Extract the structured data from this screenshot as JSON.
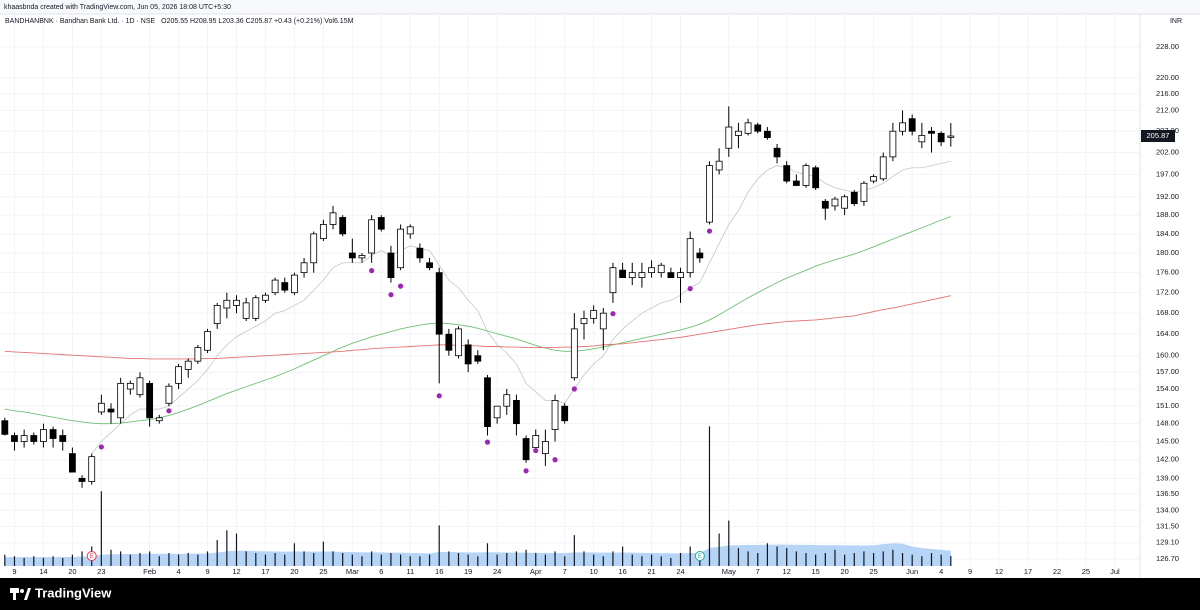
{
  "caption": "khaasbnda created with TradingView.com, Jun 05, 2026 18:08 UTC+5:30",
  "brand": "TradingView",
  "chart_data": {
    "type": "candlestick",
    "title": "BANDHANBNK · Bandhan Bank Ltd. · 1D · NSE",
    "subtitle": "O205.55 H208.95 L203.36 C205.87 +0.43 (+0.21%) Vol6.15M",
    "currency": "INR",
    "up_color": "#ffffff",
    "down_color": "#000000",
    "wick_color": "#000000",
    "log_scale": true,
    "grid": true,
    "xlim": [
      -0.5,
      117.6
    ],
    "ylim": [
      125.7,
      236.8
    ],
    "xticks": [
      {
        "value": 1,
        "label": "9"
      },
      {
        "value": 4,
        "label": "14"
      },
      {
        "value": 7,
        "label": "20"
      },
      {
        "value": 10,
        "label": "23"
      },
      {
        "value": 15,
        "label": "Feb"
      },
      {
        "value": 18,
        "label": "4"
      },
      {
        "value": 21,
        "label": "9"
      },
      {
        "value": 24,
        "label": "12"
      },
      {
        "value": 27,
        "label": "17"
      },
      {
        "value": 30,
        "label": "20"
      },
      {
        "value": 33,
        "label": "25"
      },
      {
        "value": 36,
        "label": "Mar"
      },
      {
        "value": 39,
        "label": "6"
      },
      {
        "value": 42,
        "label": "11"
      },
      {
        "value": 45,
        "label": "16"
      },
      {
        "value": 48,
        "label": "19"
      },
      {
        "value": 51,
        "label": "24"
      },
      {
        "value": 55,
        "label": "Apr"
      },
      {
        "value": 58,
        "label": "7"
      },
      {
        "value": 61,
        "label": "10"
      },
      {
        "value": 64,
        "label": "16"
      },
      {
        "value": 67,
        "label": "21"
      },
      {
        "value": 70,
        "label": "24"
      },
      {
        "value": 75,
        "label": "May"
      },
      {
        "value": 78,
        "label": "7"
      },
      {
        "value": 81,
        "label": "12"
      },
      {
        "value": 84,
        "label": "15"
      },
      {
        "value": 87,
        "label": "20"
      },
      {
        "value": 90,
        "label": "25"
      },
      {
        "value": 94,
        "label": "Jun"
      },
      {
        "value": 97,
        "label": "4"
      },
      {
        "value": 100,
        "label": "9"
      },
      {
        "value": 103,
        "label": "12"
      },
      {
        "value": 106,
        "label": "17"
      },
      {
        "value": 109,
        "label": "22"
      },
      {
        "value": 112,
        "label": "25"
      },
      {
        "value": 115,
        "label": "Jul"
      }
    ],
    "yticks": [
      {
        "value": 126.7,
        "label": "126.70"
      },
      {
        "value": 129.1,
        "label": "129.10"
      },
      {
        "value": 131.5,
        "label": "131.50"
      },
      {
        "value": 134,
        "label": "134.00"
      },
      {
        "value": 136.5,
        "label": "136.50"
      },
      {
        "value": 139,
        "label": "139.00"
      },
      {
        "value": 142,
        "label": "142.00"
      },
      {
        "value": 145,
        "label": "145.00"
      },
      {
        "value": 148,
        "label": "148.00"
      },
      {
        "value": 151,
        "label": "151.00"
      },
      {
        "value": 154,
        "label": "154.00"
      },
      {
        "value": 157,
        "label": "157.00"
      },
      {
        "value": 160,
        "label": "160.00"
      },
      {
        "value": 164,
        "label": "164.00"
      },
      {
        "value": 168,
        "label": "168.00"
      },
      {
        "value": 172,
        "label": "172.00"
      },
      {
        "value": 176,
        "label": "176.00"
      },
      {
        "value": 180,
        "label": "180.00"
      },
      {
        "value": 184,
        "label": "184.00"
      },
      {
        "value": 188,
        "label": "188.00"
      },
      {
        "value": 192,
        "label": "192.00"
      },
      {
        "value": 197,
        "label": "197.00"
      },
      {
        "value": 202,
        "label": "202.00"
      },
      {
        "value": 207,
        "label": "207.00"
      },
      {
        "value": 212,
        "label": "212.00"
      },
      {
        "value": 216,
        "label": "216.00"
      },
      {
        "value": 220,
        "label": "220.00"
      },
      {
        "value": 228,
        "label": "228.00"
      }
    ],
    "x": [
      0,
      1,
      2,
      3,
      4,
      5,
      6,
      7,
      8,
      9,
      10,
      11,
      12,
      13,
      14,
      15,
      16,
      17,
      18,
      19,
      20,
      21,
      22,
      23,
      24,
      25,
      26,
      27,
      28,
      29,
      30,
      31,
      32,
      33,
      34,
      35,
      36,
      37,
      38,
      39,
      40,
      41,
      42,
      43,
      44,
      45,
      46,
      47,
      48,
      49,
      50,
      51,
      52,
      53,
      54,
      55,
      56,
      57,
      58,
      59,
      60,
      61,
      62,
      63,
      64,
      65,
      66,
      67,
      68,
      69,
      70,
      71,
      72,
      73,
      74,
      75,
      76,
      77,
      78,
      79,
      80,
      81,
      82,
      83,
      84,
      85,
      86,
      87,
      88,
      89,
      90,
      91,
      92,
      93,
      94,
      95,
      96,
      97,
      98
    ],
    "open": [
      148.5,
      146,
      145,
      146,
      145,
      147,
      146,
      143,
      139,
      138.5,
      150,
      150.5,
      149,
      154,
      153,
      155,
      148.5,
      151.5,
      155,
      157.5,
      159,
      161,
      166,
      169,
      169.5,
      167,
      167,
      170.5,
      172,
      174,
      172,
      176,
      178,
      183,
      186,
      187.5,
      180,
      179,
      180,
      187.5,
      180,
      177,
      184,
      181,
      178,
      176,
      164,
      160,
      162,
      160,
      156,
      149,
      151,
      152,
      145.5,
      144,
      143,
      147,
      151,
      156,
      166,
      167,
      165,
      172,
      176.5,
      175,
      175,
      176,
      176,
      176,
      175,
      176,
      180,
      186.5,
      198,
      203,
      206,
      206.5,
      208.5,
      207,
      203,
      199,
      195.5,
      194.5,
      198.5,
      191,
      190,
      189.5,
      193,
      191,
      195.5,
      196,
      201,
      207,
      210,
      204.5,
      207,
      206.5,
      205.55
    ],
    "high": [
      149,
      146.5,
      147,
      146.5,
      148,
      147.5,
      147,
      144,
      139.5,
      143,
      153,
      151.5,
      156,
      155.5,
      157,
      155.5,
      149.5,
      155,
      158.5,
      159.5,
      162,
      165,
      170,
      172,
      171.5,
      171,
      171.5,
      172,
      175,
      175,
      176,
      179,
      184.5,
      187,
      190,
      188,
      183,
      180,
      188,
      188,
      181.5,
      186,
      186,
      182,
      179,
      177,
      165,
      165.5,
      163,
      161,
      156.5,
      151,
      154,
      153,
      146,
      147,
      147,
      153,
      151.5,
      168,
      168.5,
      169.5,
      169,
      178,
      178,
      178,
      178,
      178.5,
      178,
      177,
      177,
      184.5,
      181,
      200,
      203,
      213,
      209,
      210,
      209,
      208,
      204,
      200,
      197,
      199.5,
      199,
      191.5,
      192,
      192.5,
      193.5,
      195.5,
      197,
      202,
      209,
      212,
      211,
      209,
      208,
      207,
      208.95
    ],
    "low": [
      146,
      143.5,
      144,
      144.5,
      144,
      144,
      143.5,
      140,
      137.5,
      138,
      149.5,
      148,
      148,
      153,
      152.5,
      147.5,
      148,
      151,
      154,
      156,
      158.5,
      160.5,
      165,
      167,
      168,
      166.5,
      166.5,
      170,
      171.5,
      172,
      171.5,
      175,
      176,
      182.5,
      185,
      183.5,
      178,
      178,
      178,
      184.5,
      174,
      176.5,
      183,
      178,
      176.5,
      155,
      160,
      159.5,
      157,
      158.5,
      146,
      148,
      149.5,
      146,
      141.5,
      144.5,
      141,
      145,
      148,
      155.5,
      163,
      166,
      161,
      170,
      175,
      173.5,
      173,
      175,
      175,
      175,
      170,
      175,
      178,
      186,
      197,
      201,
      203,
      206,
      206.5,
      205,
      199.5,
      195,
      194.5,
      194,
      193.5,
      187,
      189,
      188,
      190,
      190,
      195,
      195.5,
      200,
      206,
      206,
      203,
      202,
      203.5,
      203.36
    ],
    "close": [
      146.2,
      145,
      146,
      145,
      147,
      145.5,
      145,
      140,
      138.5,
      142.5,
      151.5,
      150,
      155,
      155,
      156,
      149,
      149,
      154.5,
      158,
      159,
      161.5,
      164.5,
      169.5,
      170.5,
      170.5,
      170,
      171,
      171.5,
      174.5,
      172.5,
      175.5,
      178,
      184,
      186,
      188.5,
      184,
      179,
      179.5,
      187,
      185,
      175,
      185,
      185.5,
      179,
      177,
      164,
      161,
      165,
      158.5,
      159,
      147.5,
      151,
      153,
      148,
      142,
      146,
      145,
      152,
      148.5,
      165,
      167,
      168.5,
      168,
      177,
      175,
      176,
      176,
      177,
      177.5,
      175,
      176,
      183,
      179,
      199,
      200,
      208,
      207,
      209,
      207,
      205.5,
      201,
      195.5,
      194.5,
      199,
      194,
      189.5,
      191.5,
      192,
      190.5,
      195,
      196.5,
      201,
      207,
      209,
      207,
      206,
      206.5,
      204.5,
      205.87
    ],
    "lines": [
      {
        "color": "#c3c6cc",
        "width": 0.8,
        "values": [
          null,
          null,
          null,
          null,
          null,
          null,
          null,
          null,
          null,
          143,
          145,
          146.5,
          148,
          149.5,
          150.5,
          150.5,
          150.5,
          151,
          152.5,
          154,
          155.5,
          157.5,
          160,
          162,
          163.5,
          164.5,
          165.5,
          166.5,
          168,
          168.5,
          169.5,
          170.5,
          172.5,
          174.5,
          177,
          178,
          178,
          178,
          179.5,
          180.5,
          179.5,
          180.5,
          181.5,
          181,
          180.5,
          177.5,
          174.5,
          173,
          170.5,
          168.5,
          164.5,
          162,
          160.5,
          158.5,
          155,
          153.5,
          152,
          152,
          151.5,
          154,
          156.5,
          158.5,
          160,
          163,
          165,
          166.5,
          168,
          169,
          170,
          170.5,
          171.5,
          173,
          174,
          178,
          182,
          186,
          189,
          193,
          196,
          198,
          199,
          198.5,
          197.5,
          197,
          196.5,
          195,
          194,
          193.5,
          193,
          193.5,
          194,
          195,
          196.5,
          198,
          198.5,
          198.5,
          199,
          199.5,
          200
        ]
      },
      {
        "color": "#6fbf73",
        "width": 0.9,
        "values": [
          150.5,
          150.2,
          150,
          149.7,
          149.4,
          149.1,
          148.8,
          148.5,
          148.3,
          148.1,
          148,
          148,
          148.1,
          148.3,
          148.5,
          148.7,
          149,
          149.4,
          149.9,
          150.5,
          151.1,
          151.8,
          152.5,
          153.2,
          153.8,
          154.4,
          155,
          155.6,
          156.2,
          156.9,
          157.6,
          158.4,
          159.2,
          160,
          160.8,
          161.6,
          162.3,
          162.9,
          163.5,
          164,
          164.5,
          165,
          165.4,
          165.7,
          166,
          166.1,
          166,
          165.8,
          165.5,
          165.1,
          164.6,
          164.1,
          163.6,
          163.1,
          162.5,
          161.9,
          161.4,
          161,
          160.8,
          160.8,
          161,
          161.3,
          161.6,
          162,
          162.4,
          162.8,
          163.2,
          163.6,
          164,
          164.4,
          164.8,
          165.3,
          165.9,
          166.7,
          167.7,
          168.8,
          169.9,
          171,
          172,
          173,
          174,
          174.9,
          175.7,
          176.5,
          177.3,
          178,
          178.6,
          179.2,
          179.8,
          180.5,
          181.3,
          182.1,
          182.9,
          183.7,
          184.5,
          185.3,
          186.1,
          186.9,
          187.7
        ]
      },
      {
        "color": "#e57373",
        "width": 0.9,
        "values": [
          160.8,
          160.7,
          160.6,
          160.5,
          160.4,
          160.3,
          160.2,
          160.1,
          160,
          159.9,
          159.8,
          159.7,
          159.6,
          159.5,
          159.5,
          159.4,
          159.4,
          159.4,
          159.4,
          159.4,
          159.4,
          159.5,
          159.5,
          159.6,
          159.7,
          159.8,
          159.9,
          160,
          160.1,
          160.2,
          160.3,
          160.4,
          160.5,
          160.6,
          160.7,
          160.8,
          161,
          161.1,
          161.3,
          161.4,
          161.5,
          161.6,
          161.7,
          161.8,
          161.9,
          162,
          162,
          161.9,
          161.9,
          161.8,
          161.7,
          161.7,
          161.6,
          161.6,
          161.5,
          161.5,
          161.5,
          161.5,
          161.6,
          161.6,
          161.7,
          161.8,
          162,
          162.1,
          162.2,
          162.4,
          162.6,
          162.8,
          163,
          163.2,
          163.4,
          163.7,
          164,
          164.3,
          164.6,
          164.9,
          165.2,
          165.5,
          165.8,
          166,
          166.2,
          166.4,
          166.5,
          166.6,
          166.7,
          166.9,
          167.1,
          167.3,
          167.5,
          167.9,
          168.3,
          168.7,
          169,
          169.4,
          169.8,
          170.2,
          170.6,
          171,
          171.4
        ]
      }
    ],
    "volume": {
      "ylim": [
        0,
        340
      ],
      "color": "#131722",
      "ma_color": "#a9cdf5",
      "values": [
        7,
        6,
        5,
        6,
        5,
        6,
        5,
        7,
        9,
        12,
        46,
        10,
        9,
        7,
        8,
        9,
        6,
        8,
        7,
        8,
        7,
        9,
        16,
        22,
        20,
        9,
        8,
        7,
        8,
        7,
        14,
        9,
        8,
        15,
        9,
        8,
        7,
        6,
        9,
        7,
        8,
        7,
        6,
        6,
        7,
        25,
        9,
        8,
        7,
        6,
        14,
        7,
        8,
        9,
        10,
        8,
        7,
        9,
        6,
        19,
        9,
        7,
        6,
        9,
        12,
        7,
        6,
        7,
        6,
        5,
        8,
        12,
        9,
        86,
        20,
        28,
        11,
        9,
        8,
        14,
        12,
        11,
        9,
        8,
        7,
        8,
        10,
        7,
        8,
        9,
        8,
        9,
        10,
        8,
        7,
        6,
        8,
        7,
        6.15
      ],
      "ma": [
        5.5,
        5.5,
        5.5,
        5.5,
        5.5,
        5.5,
        5.5,
        5.6,
        5.8,
        6,
        7,
        7.2,
        7.3,
        7.4,
        7.5,
        7.6,
        7.5,
        7.6,
        7.5,
        7.6,
        7.6,
        7.8,
        8.3,
        9,
        9.5,
        9.4,
        9.2,
        9,
        9,
        8.8,
        9,
        8.9,
        8.8,
        9,
        8.9,
        8.7,
        8.6,
        8.4,
        8.4,
        8.3,
        8.2,
        8.2,
        8,
        7.9,
        7.8,
        8.6,
        8.6,
        8.5,
        8.4,
        8.3,
        8.5,
        8.4,
        8.3,
        8.2,
        8.2,
        8.1,
        8,
        8,
        7.9,
        8.4,
        8.4,
        8.3,
        8.2,
        8.2,
        8.3,
        8.2,
        8.1,
        8,
        7.9,
        7.8,
        7.8,
        8,
        8,
        11,
        11.8,
        12.7,
        12.8,
        12.9,
        12.9,
        13.1,
        13.2,
        13.2,
        13.1,
        13,
        12.9,
        12.8,
        12.8,
        12.7,
        12.6,
        12.6,
        12.7,
        13.5,
        14,
        13.8,
        12,
        11,
        10.5,
        10,
        9.5
      ]
    },
    "markers": {
      "color": "#9c27b0",
      "x": [
        10,
        17,
        38,
        40,
        41,
        45,
        50,
        54,
        55,
        57,
        59,
        63,
        71,
        73
      ],
      "values": [
        144.1,
        150.2,
        176.4,
        171.6,
        173.3,
        152.8,
        144.9,
        140.2,
        143.5,
        142,
        154,
        167.9,
        172.8,
        184.6
      ]
    },
    "events": [
      {
        "x": 9,
        "label": "E",
        "color": "#f23645"
      },
      {
        "x": 72,
        "label": "E",
        "color": "#22ab94"
      }
    ]
  }
}
